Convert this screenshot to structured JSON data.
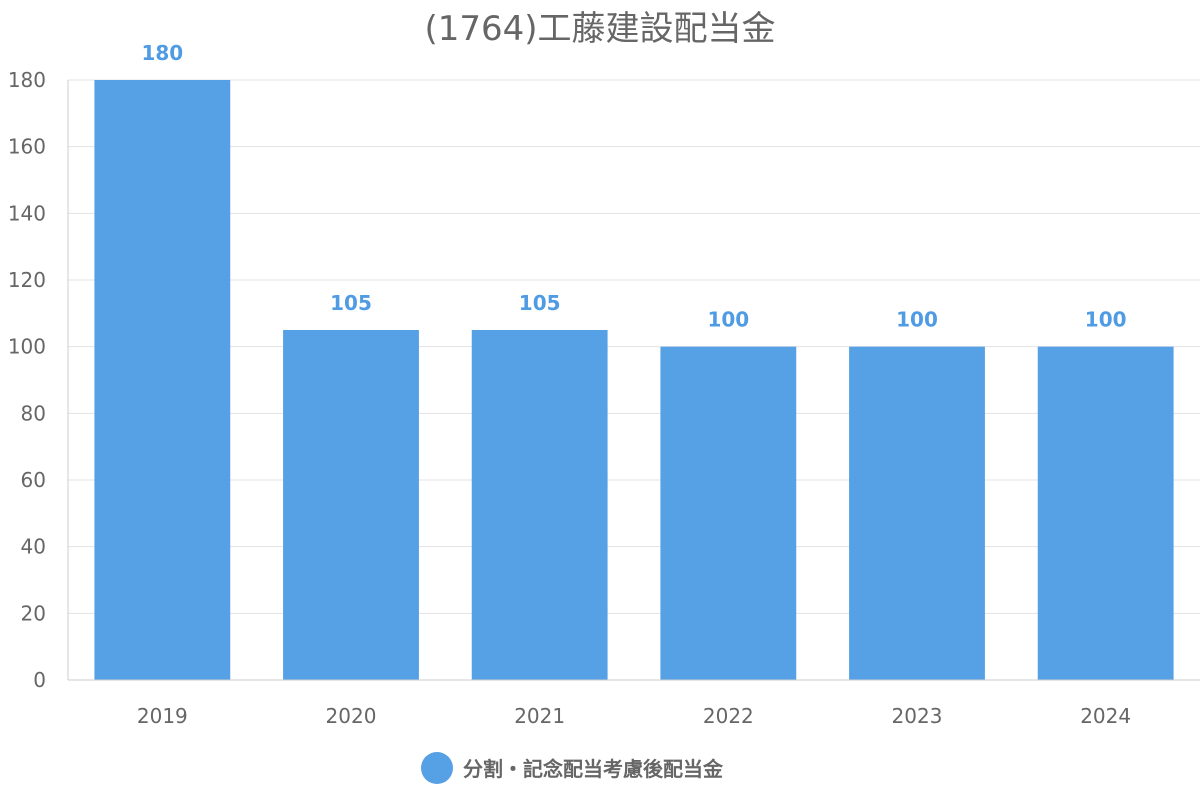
{
  "chart_data": {
    "type": "bar",
    "title": "(1764)工藤建設配当金",
    "categories": [
      "2019",
      "2020",
      "2021",
      "2022",
      "2023",
      "2024"
    ],
    "series": [
      {
        "name": "分割・記念配当考慮後配当金",
        "values": [
          180,
          105,
          105,
          100,
          100,
          100
        ],
        "color": "#56a0e5"
      }
    ],
    "data_labels": [
      "180",
      "105",
      "105",
      "100",
      "100",
      "100"
    ],
    "ylim": [
      0,
      180
    ],
    "yticks": [
      "0",
      "20",
      "40",
      "60",
      "80",
      "100",
      "120",
      "140",
      "160",
      "180"
    ],
    "xlabel": "",
    "ylabel": "",
    "grid": true,
    "legend_position": "bottom",
    "colors": {
      "bar": "#56a0e5",
      "data_label": "#4f9be4",
      "grid": "#e3e3e3",
      "axis": "#cccccc",
      "text": "#666666"
    }
  }
}
